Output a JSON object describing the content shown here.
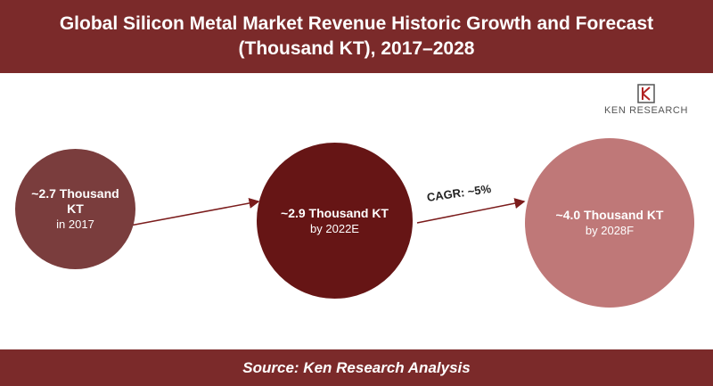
{
  "header": {
    "title_line1": "Global Silicon Metal Market Revenue Historic Growth and Forecast",
    "title_line2": "(Thousand KT), 2017–2028"
  },
  "logo": {
    "text": "KEN RESEARCH",
    "icon": "ken-research-logo"
  },
  "chart_data": {
    "type": "bubble",
    "title": "Global Silicon Metal Market Revenue Historic Growth and Forecast (Thousand KT), 2017–2028",
    "unit": "Thousand KT",
    "points": [
      {
        "value": 2.7,
        "value_label": "~2.7 Thousand KT",
        "period_label": "in 2017"
      },
      {
        "value": 2.9,
        "value_label": "~2.9 Thousand KT",
        "period_label": "by 2022E"
      },
      {
        "value": 4.0,
        "value_label": "~4.0 Thousand KT",
        "period_label": "by 2028F"
      }
    ],
    "annotations": [
      {
        "text": "CAGR: ~5%"
      }
    ]
  },
  "colors": {
    "band": "#7b2a2a",
    "bubble_2017": "#7a3d3d",
    "bubble_2022": "#661515",
    "bubble_2028": "#bf7878",
    "arrow": "#7b1c1c"
  },
  "footer": {
    "source": "Source: Ken Research Analysis"
  }
}
